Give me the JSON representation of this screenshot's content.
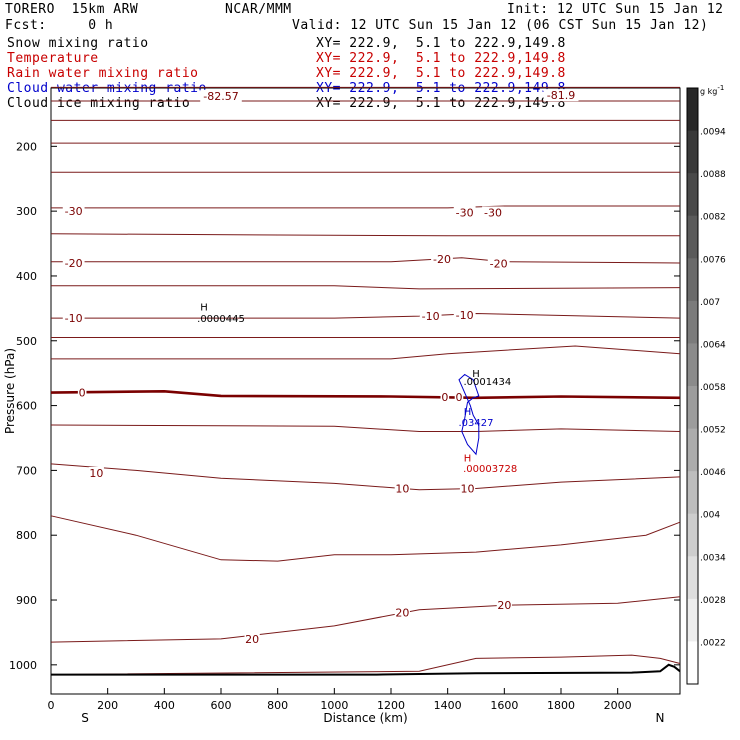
{
  "header": {
    "model": "TORERO  15km ARW",
    "center": "NCAR/MMM",
    "init": "Init: 12 UTC Sun 15 Jan 12",
    "fcst": "Fcst:     0 h",
    "valid": "Valid: 12 UTC Sun 15 Jan 12 (06 CST Sun 15 Jan 12)"
  },
  "fields": [
    {
      "name": "Snow mixing ratio",
      "xy": "XY= 222.9,  5.1 to 222.9,149.8",
      "color": "#000000"
    },
    {
      "name": "Temperature",
      "xy": "XY= 222.9,  5.1 to 222.9,149.8",
      "color": "#c80000"
    },
    {
      "name": "Rain water mixing ratio",
      "xy": "XY= 222.9,  5.1 to 222.9,149.8",
      "color": "#c80000"
    },
    {
      "name": "Cloud water mixing ratio",
      "xy": "XY= 222.9,  5.1 to 222.9,149.8",
      "color": "#0000cc"
    },
    {
      "name": "Cloud ice mixing ratio",
      "xy": "XY= 222.9,  5.1 to 222.9,149.8",
      "color": "#000000"
    }
  ],
  "chart_data": {
    "type": "line",
    "xlabel": "Distance (km)",
    "ylabel": "Pressure (hPa)",
    "xlim": [
      0,
      2220
    ],
    "ylim": [
      1045,
      110
    ],
    "x_ticks": [
      0,
      200,
      400,
      600,
      800,
      1000,
      1200,
      1400,
      1600,
      1800,
      2000
    ],
    "y_ticks": [
      200,
      300,
      400,
      500,
      600,
      700,
      800,
      900,
      1000
    ],
    "y_tick_labels": [
      "200",
      "300",
      "400",
      "500",
      "600",
      "700",
      "800",
      "900",
      "1000"
    ],
    "x_end_labels": {
      "left": "S",
      "right": "N"
    },
    "temperature_isotherms": [
      {
        "name": "top",
        "points": [
          [
            0,
            109
          ],
          [
            2220,
            109
          ]
        ]
      },
      {
        "name": "iso1",
        "points": [
          [
            0,
            130
          ],
          [
            2220,
            130
          ]
        ]
      },
      {
        "name": "iso2",
        "points": [
          [
            0,
            160
          ],
          [
            2220,
            160
          ]
        ]
      },
      {
        "name": "iso3",
        "points": [
          [
            0,
            195
          ],
          [
            2220,
            195
          ]
        ]
      },
      {
        "name": "iso4",
        "points": [
          [
            0,
            240
          ],
          [
            2220,
            240
          ]
        ]
      },
      {
        "name": "-30",
        "points": [
          [
            0,
            295
          ],
          [
            1400,
            295
          ],
          [
            1600,
            292
          ],
          [
            2220,
            292
          ]
        ]
      },
      {
        "name": "iso6",
        "points": [
          [
            0,
            335
          ],
          [
            1400,
            338
          ],
          [
            2220,
            338
          ]
        ]
      },
      {
        "name": "-20",
        "points": [
          [
            0,
            378
          ],
          [
            1200,
            378
          ],
          [
            1450,
            372
          ],
          [
            1600,
            378
          ],
          [
            2220,
            380
          ]
        ]
      },
      {
        "name": "iso8",
        "points": [
          [
            0,
            415
          ],
          [
            1000,
            415
          ],
          [
            1300,
            420
          ],
          [
            2220,
            418
          ]
        ]
      },
      {
        "name": "-10",
        "points": [
          [
            0,
            465
          ],
          [
            1000,
            465
          ],
          [
            1300,
            462
          ],
          [
            1500,
            458
          ],
          [
            2220,
            465
          ]
        ]
      },
      {
        "name": "iso10",
        "points": [
          [
            0,
            495
          ],
          [
            2220,
            495
          ]
        ]
      },
      {
        "name": "iso11",
        "points": [
          [
            0,
            528
          ],
          [
            1200,
            528
          ],
          [
            1400,
            520
          ],
          [
            1850,
            508
          ],
          [
            2220,
            520
          ]
        ]
      },
      {
        "name": "0",
        "points": [
          [
            0,
            580
          ],
          [
            400,
            578
          ],
          [
            600,
            585
          ],
          [
            1200,
            586
          ],
          [
            1500,
            588
          ],
          [
            1800,
            586
          ],
          [
            2220,
            588
          ]
        ]
      },
      {
        "name": "iso13",
        "points": [
          [
            0,
            630
          ],
          [
            1000,
            632
          ],
          [
            1300,
            640
          ],
          [
            1500,
            640
          ],
          [
            1800,
            636
          ],
          [
            2220,
            640
          ]
        ]
      },
      {
        "name": "10",
        "points": [
          [
            0,
            690
          ],
          [
            300,
            700
          ],
          [
            600,
            712
          ],
          [
            1000,
            720
          ],
          [
            1300,
            730
          ],
          [
            1500,
            728
          ],
          [
            1800,
            718
          ],
          [
            2220,
            710
          ]
        ]
      },
      {
        "name": "iso15",
        "points": [
          [
            0,
            770
          ],
          [
            300,
            800
          ],
          [
            600,
            838
          ],
          [
            800,
            840
          ],
          [
            1000,
            830
          ],
          [
            1200,
            830
          ],
          [
            1500,
            826
          ],
          [
            1800,
            815
          ],
          [
            2100,
            800
          ],
          [
            2220,
            780
          ]
        ]
      },
      {
        "name": "20",
        "points": [
          [
            0,
            965
          ],
          [
            600,
            960
          ],
          [
            1000,
            940
          ],
          [
            1300,
            915
          ],
          [
            1600,
            908
          ],
          [
            2000,
            905
          ],
          [
            2220,
            895
          ]
        ]
      },
      {
        "name": "iso17",
        "points": [
          [
            0,
            1015
          ],
          [
            1300,
            1010
          ],
          [
            1500,
            990
          ],
          [
            1800,
            988
          ],
          [
            2050,
            985
          ],
          [
            2150,
            990
          ],
          [
            2220,
            998
          ]
        ]
      }
    ],
    "temperature_labels": [
      {
        "text": "-82.57",
        "x": 600,
        "y": 122
      },
      {
        "text": "-81.9",
        "x": 1800,
        "y": 121
      },
      {
        "text": "-30",
        "x": 80,
        "y": 300
      },
      {
        "text": "-30",
        "x": 1460,
        "y": 302
      },
      {
        "text": "-30",
        "x": 1560,
        "y": 302
      },
      {
        "text": "-20",
        "x": 80,
        "y": 380
      },
      {
        "text": "-20",
        "x": 1380,
        "y": 374
      },
      {
        "text": "-20",
        "x": 1580,
        "y": 381
      },
      {
        "text": "-10",
        "x": 80,
        "y": 465
      },
      {
        "text": "-10",
        "x": 1340,
        "y": 462
      },
      {
        "text": "-10",
        "x": 1460,
        "y": 460
      },
      {
        "text": "0",
        "x": 110,
        "y": 580
      },
      {
        "text": "0",
        "x": 1390,
        "y": 587
      },
      {
        "text": "0",
        "x": 1440,
        "y": 587
      },
      {
        "text": "10",
        "x": 160,
        "y": 704
      },
      {
        "text": "10",
        "x": 1240,
        "y": 728
      },
      {
        "text": "10",
        "x": 1470,
        "y": 728
      },
      {
        "text": "20",
        "x": 1240,
        "y": 919
      },
      {
        "text": "20",
        "x": 1600,
        "y": 908
      },
      {
        "text": "20",
        "x": 710,
        "y": 960
      }
    ],
    "annotations": [
      {
        "text": "H",
        "x": 540,
        "y": 447,
        "color": "#000000"
      },
      {
        "text": ".0000445",
        "x": 600,
        "y": 465,
        "color": "#000000"
      },
      {
        "text": "H",
        "x": 1500,
        "y": 550,
        "color": "#000000"
      },
      {
        "text": ".0001434",
        "x": 1540,
        "y": 562,
        "color": "#000000"
      },
      {
        "text": "H",
        "x": 1470,
        "y": 608,
        "color": "#0000cc"
      },
      {
        "text": ".03427",
        "x": 1500,
        "y": 625,
        "color": "#0000cc"
      },
      {
        "text": "H",
        "x": 1470,
        "y": 680,
        "color": "#c80000"
      },
      {
        "text": ".00003728",
        "x": 1550,
        "y": 696,
        "color": "#c80000"
      }
    ],
    "cloud_contour": [
      [
        1440,
        560
      ],
      [
        1460,
        552
      ],
      [
        1490,
        560
      ],
      [
        1510,
        585
      ],
      [
        1490,
        588
      ],
      [
        1470,
        595
      ],
      [
        1460,
        620
      ],
      [
        1450,
        640
      ],
      [
        1470,
        660
      ],
      [
        1500,
        675
      ],
      [
        1510,
        650
      ],
      [
        1510,
        630
      ],
      [
        1490,
        615
      ],
      [
        1480,
        600
      ],
      [
        1440,
        560
      ]
    ],
    "ground_line": [
      [
        0,
        1015
      ],
      [
        1150,
        1015
      ],
      [
        1500,
        1013
      ],
      [
        2050,
        1012
      ],
      [
        2150,
        1010
      ],
      [
        2180,
        1000
      ],
      [
        2200,
        1003
      ],
      [
        2220,
        1010
      ]
    ],
    "colorbar": {
      "unit": "g kg",
      "unit_exp": "-1",
      "ticks": [
        ".0094",
        ".0088",
        ".0082",
        ".0076",
        ".007",
        ".0064",
        ".0058",
        ".0052",
        ".0046",
        ".004",
        ".0034",
        ".0028",
        ".0022"
      ]
    }
  }
}
